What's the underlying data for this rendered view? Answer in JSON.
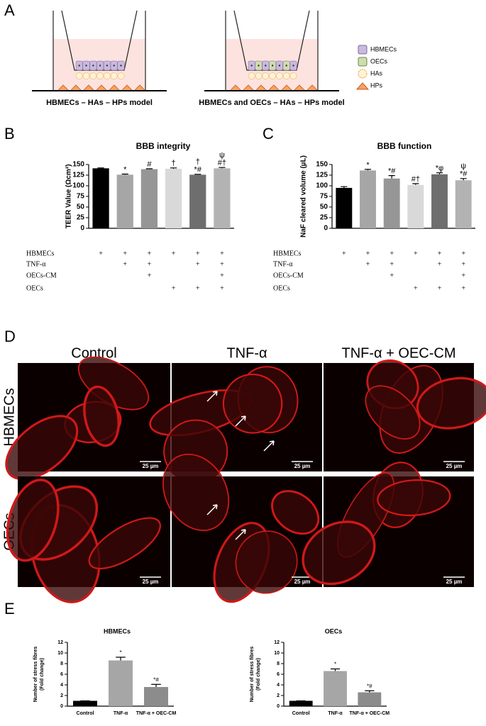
{
  "panel_labels": [
    "A",
    "B",
    "C",
    "D",
    "E"
  ],
  "diagram": {
    "models": [
      "HBMECs – HAs – HPs model",
      "HBMECs and OECs – HAs – HPs model"
    ],
    "legend": [
      "HBMECs",
      "OECs",
      "HAs",
      "HPs"
    ]
  },
  "chart_data": [
    {
      "type": "bar",
      "title": "BBB integrity",
      "y_label": "TEER Value (Ωcm²)",
      "values": [
        141,
        126,
        139,
        140,
        126,
        141
      ],
      "errors": [
        1,
        1.5,
        1,
        2,
        1,
        2
      ],
      "colors": [
        "#000000",
        "#a6a6a6",
        "#969696",
        "#d9d9d9",
        "#6e6e6e",
        "#b3b3b3"
      ],
      "annotations": [
        {
          "bar": 1,
          "lines": [
            "*"
          ]
        },
        {
          "bar": 2,
          "lines": [
            "#"
          ]
        },
        {
          "bar": 3,
          "lines": [
            "†"
          ]
        },
        {
          "bar": 4,
          "lines": [
            "†",
            "*#"
          ]
        },
        {
          "bar": 5,
          "lines": [
            "ψ",
            "#†"
          ]
        }
      ],
      "ylim": [
        0,
        150
      ],
      "yticks": [
        0,
        25,
        50,
        75,
        100,
        125,
        150
      ],
      "conditions": [
        {
          "label": "HBMECs",
          "marks": [
            "+",
            "+",
            "+",
            "+",
            "+",
            "+"
          ]
        },
        {
          "label": "TNF-α",
          "marks": [
            null,
            "+",
            "+",
            null,
            "+",
            "+"
          ]
        },
        {
          "label": "OECs-CM",
          "marks": [
            null,
            null,
            "+",
            null,
            null,
            "+"
          ]
        },
        {
          "label": "OECs",
          "marks": [
            null,
            null,
            null,
            "+",
            "+",
            "+"
          ]
        }
      ]
    },
    {
      "type": "bar",
      "title": "BBB function",
      "y_label": "NaF cleared volume (µL)",
      "values": [
        95,
        136,
        117,
        102,
        127,
        113
      ],
      "errors": [
        3,
        2.5,
        7,
        3,
        3.5,
        4
      ],
      "colors": [
        "#000000",
        "#a6a6a6",
        "#969696",
        "#d9d9d9",
        "#6e6e6e",
        "#b3b3b3"
      ],
      "annotations": [
        {
          "bar": 1,
          "lines": [
            "*"
          ]
        },
        {
          "bar": 2,
          "lines": [
            "*#"
          ]
        },
        {
          "bar": 3,
          "lines": [
            "#†"
          ]
        },
        {
          "bar": 4,
          "lines": [
            "*φ"
          ]
        },
        {
          "bar": 5,
          "lines": [
            "ψ",
            "*#"
          ]
        }
      ],
      "ylim": [
        0,
        150
      ],
      "yticks": [
        0,
        25,
        50,
        75,
        100,
        125,
        150
      ],
      "conditions": [
        {
          "label": "HBMECs",
          "marks": [
            "+",
            "+",
            "+",
            "+",
            "+",
            "+"
          ]
        },
        {
          "label": "TNF-α",
          "marks": [
            null,
            "+",
            "+",
            null,
            "+",
            "+"
          ]
        },
        {
          "label": "OECs-CM",
          "marks": [
            null,
            null,
            "+",
            null,
            null,
            "+"
          ]
        },
        {
          "label": "OECs",
          "marks": [
            null,
            null,
            null,
            "+",
            "+",
            "+"
          ]
        }
      ]
    },
    {
      "type": "bar",
      "title": "HBMECs",
      "y_label": [
        "Number of stress fibres",
        "(Fold change)"
      ],
      "categories": [
        "Control",
        "TNF-α",
        "TNF-α + OEC-CM"
      ],
      "values": [
        1,
        8.6,
        3.6
      ],
      "errors": [
        0,
        0.6,
        0.5
      ],
      "colors": [
        "#000000",
        "#a6a6a6",
        "#8c8c8c"
      ],
      "annotations": [
        {
          "bar": 1,
          "lines": [
            "*"
          ]
        },
        {
          "bar": 2,
          "lines": [
            "*#"
          ]
        }
      ],
      "ylim": [
        0,
        12
      ],
      "yticks": [
        0,
        2,
        4,
        6,
        8,
        10,
        12
      ]
    },
    {
      "type": "bar",
      "title": "OECs",
      "y_label": [
        "Number of stress fibres",
        "(Fold change)"
      ],
      "categories": [
        "Control",
        "TNF-α",
        "TNF-α + OEC-CM"
      ],
      "values": [
        1,
        6.6,
        2.6
      ],
      "errors": [
        0,
        0.4,
        0.3
      ],
      "colors": [
        "#000000",
        "#a6a6a6",
        "#8c8c8c"
      ],
      "annotations": [
        {
          "bar": 1,
          "lines": [
            "*"
          ]
        },
        {
          "bar": 2,
          "lines": [
            "*#"
          ]
        }
      ],
      "ylim": [
        0,
        12
      ],
      "yticks": [
        0,
        2,
        4,
        6,
        8,
        10,
        12
      ]
    }
  ],
  "microscopy": {
    "columns": [
      "Control",
      "TNF-α",
      "TNF-α + OEC-CM"
    ],
    "rows": [
      "HBMECs",
      "OECs"
    ],
    "scale_bar": "25 µm"
  }
}
